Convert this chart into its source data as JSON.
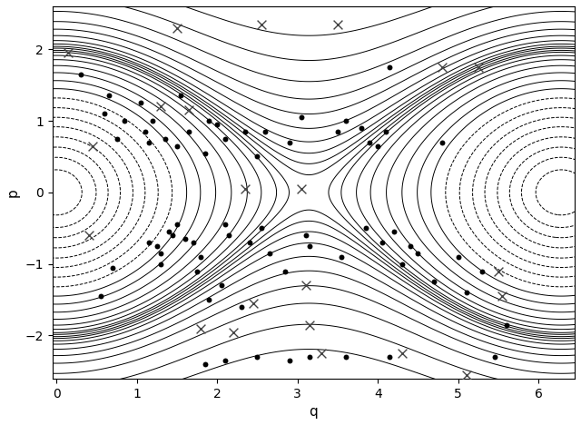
{
  "title": "",
  "xlabel": "q",
  "ylabel": "p",
  "xlim": [
    -0.05,
    6.45
  ],
  "ylim": [
    -2.6,
    2.6
  ],
  "xticks": [
    0,
    1,
    2,
    3,
    4,
    5,
    6
  ],
  "yticks": [
    -2,
    -1,
    0,
    1,
    2
  ],
  "dot_color": "black",
  "cross_color": "#444444",
  "line_color": "black",
  "background": "white",
  "dot_size": 18,
  "cross_size": 50,
  "dots": [
    [
      0.3,
      1.65
    ],
    [
      0.6,
      1.1
    ],
    [
      0.65,
      1.35
    ],
    [
      0.75,
      0.75
    ],
    [
      0.85,
      1.0
    ],
    [
      1.05,
      1.25
    ],
    [
      1.1,
      0.85
    ],
    [
      1.15,
      0.7
    ],
    [
      1.15,
      -0.7
    ],
    [
      1.2,
      1.0
    ],
    [
      1.25,
      -0.75
    ],
    [
      1.3,
      -0.85
    ],
    [
      1.3,
      -1.0
    ],
    [
      1.35,
      0.75
    ],
    [
      1.4,
      -0.55
    ],
    [
      1.45,
      -0.6
    ],
    [
      1.5,
      -0.45
    ],
    [
      1.5,
      0.65
    ],
    [
      1.55,
      1.35
    ],
    [
      1.6,
      -0.65
    ],
    [
      1.65,
      0.85
    ],
    [
      1.7,
      -0.7
    ],
    [
      1.75,
      -1.1
    ],
    [
      1.8,
      -0.9
    ],
    [
      1.85,
      0.55
    ],
    [
      1.9,
      -1.5
    ],
    [
      1.9,
      1.0
    ],
    [
      2.0,
      0.95
    ],
    [
      2.05,
      -1.3
    ],
    [
      2.1,
      -0.45
    ],
    [
      2.1,
      0.75
    ],
    [
      2.15,
      -0.6
    ],
    [
      2.3,
      -1.6
    ],
    [
      2.35,
      0.85
    ],
    [
      2.4,
      -0.7
    ],
    [
      2.5,
      0.5
    ],
    [
      2.55,
      -0.5
    ],
    [
      2.6,
      0.85
    ],
    [
      2.65,
      -0.85
    ],
    [
      2.85,
      -1.1
    ],
    [
      2.9,
      0.7
    ],
    [
      3.05,
      1.05
    ],
    [
      3.1,
      -0.6
    ],
    [
      3.15,
      -0.75
    ],
    [
      3.5,
      0.85
    ],
    [
      3.55,
      -0.9
    ],
    [
      3.6,
      1.0
    ],
    [
      3.8,
      0.9
    ],
    [
      3.85,
      -0.5
    ],
    [
      3.9,
      0.7
    ],
    [
      4.0,
      0.65
    ],
    [
      4.05,
      -0.7
    ],
    [
      4.1,
      0.85
    ],
    [
      4.15,
      1.75
    ],
    [
      4.2,
      -0.55
    ],
    [
      4.3,
      -1.0
    ],
    [
      4.4,
      -0.75
    ],
    [
      4.5,
      -0.85
    ],
    [
      4.7,
      -1.25
    ],
    [
      4.8,
      0.7
    ],
    [
      5.0,
      -0.9
    ],
    [
      5.1,
      -1.4
    ],
    [
      5.3,
      -1.1
    ],
    [
      1.85,
      -2.4
    ],
    [
      2.1,
      -2.35
    ],
    [
      2.5,
      -2.3
    ],
    [
      2.9,
      -2.35
    ],
    [
      3.15,
      -2.3
    ],
    [
      3.6,
      -2.3
    ],
    [
      4.15,
      -2.3
    ],
    [
      0.55,
      -1.45
    ],
    [
      0.7,
      -1.05
    ],
    [
      5.45,
      -2.3
    ],
    [
      5.6,
      -1.85
    ]
  ],
  "crosses": [
    [
      0.15,
      1.95
    ],
    [
      1.5,
      2.3
    ],
    [
      2.55,
      2.35
    ],
    [
      3.5,
      2.35
    ],
    [
      4.8,
      1.75
    ],
    [
      5.25,
      1.75
    ],
    [
      0.45,
      0.65
    ],
    [
      1.3,
      1.2
    ],
    [
      2.35,
      0.05
    ],
    [
      3.05,
      0.05
    ],
    [
      3.1,
      -1.3
    ],
    [
      3.15,
      -1.85
    ],
    [
      0.4,
      -0.6
    ],
    [
      1.65,
      1.15
    ],
    [
      2.45,
      -1.55
    ],
    [
      1.8,
      -1.9
    ],
    [
      2.2,
      -1.95
    ],
    [
      3.3,
      -2.25
    ],
    [
      4.3,
      -2.25
    ],
    [
      5.1,
      -2.55
    ],
    [
      5.5,
      -1.1
    ],
    [
      5.55,
      -1.45
    ]
  ],
  "closed_H_levels": [
    -0.95,
    -0.88,
    -0.8,
    -0.7,
    -0.58,
    -0.45,
    -0.3,
    -0.13,
    0.05,
    0.22,
    0.4,
    0.57,
    0.72,
    0.83,
    0.92,
    0.97
  ],
  "open_H_levels": [
    1.03,
    1.08,
    1.15,
    1.25,
    1.4,
    1.6,
    1.85,
    2.2,
    2.7,
    3.4,
    4.5,
    6.0,
    8.5
  ]
}
